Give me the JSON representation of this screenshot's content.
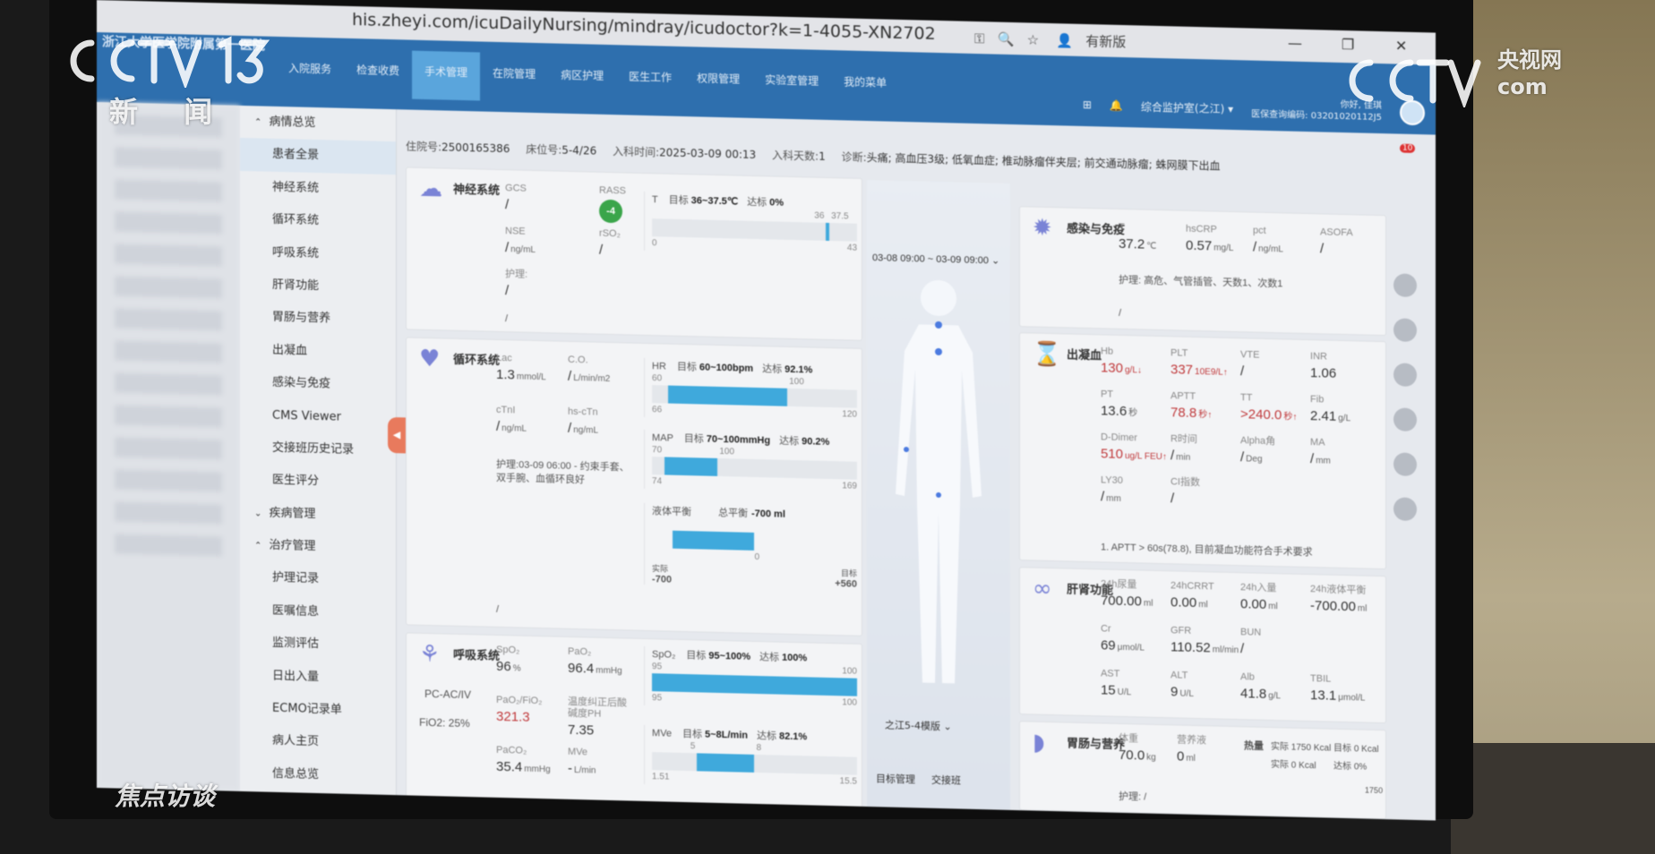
{
  "browser": {
    "url": "his.zheyi.com/icuDailyNursing/mindray/icudoctor?k=1-4055-XN2702",
    "profile_label": "有新版",
    "window_buttons": [
      "—",
      "❐",
      "✕"
    ]
  },
  "header": {
    "hospital": "浙江大学医学院附属第一医院",
    "nav": [
      "入院服务",
      "检查收费",
      "手术管理",
      "在院管理",
      "病区护理",
      "医生工作",
      "权限管理",
      "实验室管理",
      "我的菜单"
    ],
    "active_nav": 2,
    "ward": "综合监护室(之江)",
    "greeting": "你好, 佳琪",
    "staff_no": "医保查询编码: 03201020112J5",
    "notification_count": "10"
  },
  "sidebar": {
    "items": [
      {
        "label": "病情总览",
        "group": true,
        "expanded": true
      },
      {
        "label": "患者全景",
        "selected": true
      },
      {
        "label": "神经系统"
      },
      {
        "label": "循环系统"
      },
      {
        "label": "呼吸系统"
      },
      {
        "label": "肝肾功能"
      },
      {
        "label": "胃肠与营养"
      },
      {
        "label": "出凝血"
      },
      {
        "label": "感染与免疫"
      },
      {
        "label": "CMS Viewer"
      },
      {
        "label": "交接班历史记录"
      },
      {
        "label": "医生评分"
      },
      {
        "label": "疾病管理",
        "group": true
      },
      {
        "label": "治疗管理",
        "group": true,
        "expanded": true
      },
      {
        "label": "护理记录"
      },
      {
        "label": "医嘱信息"
      },
      {
        "label": "监测评估"
      },
      {
        "label": "日出入量"
      },
      {
        "label": "ECMO记录单"
      },
      {
        "label": "病人主页"
      },
      {
        "label": "信息总览"
      }
    ]
  },
  "patient": {
    "id_label": "住院号:",
    "id": "2500165386",
    "bed_label": "床位号:",
    "bed": "5-4/26",
    "admit_label": "入科时间:",
    "admit": "2025-03-09 00:13",
    "days_label": "入科天数:",
    "days": "1",
    "dx_label": "诊断:",
    "dx": "头痛; 高血压3级; 低氧血症; 椎动脉瘤伴夹层; 前交通动脉瘤; 蛛网膜下出血"
  },
  "neuro": {
    "title": "神经系统",
    "icon": "brain-icon",
    "metrics": [
      {
        "label": "GCS",
        "value": "/"
      },
      {
        "label": "RASS",
        "value": "-4",
        "badge": true
      },
      {
        "label": "NSE",
        "value": "/",
        "unit": "ng/mL"
      },
      {
        "label": "rSO₂",
        "value": "/"
      },
      {
        "label": "护理:",
        "value": "/"
      }
    ],
    "footer": "/",
    "chart": {
      "name": "T",
      "target_label": "目标",
      "target": "36~37.5℃",
      "rate_label": "达标",
      "rate": "0%",
      "ticks_top": [
        "36",
        "37.5"
      ],
      "min": "0",
      "max": "43",
      "value_range": [
        36.5,
        37.2
      ]
    }
  },
  "circ": {
    "title": "循环系统",
    "icon": "heart-lungs-icon",
    "metrics": [
      {
        "label": "Lac",
        "value": "1.3",
        "unit": "mmol/L"
      },
      {
        "label": "C.O.",
        "value": "/",
        "unit": "L/min/m2"
      },
      {
        "label": "cTnI",
        "value": "/",
        "unit": "ng/mL"
      },
      {
        "label": "hs-cTn",
        "value": "/",
        "unit": "ng/mL"
      }
    ],
    "nursing": "护理:03-09 06:00 - 约束手套、双手腕、血循环良好",
    "footer": "/",
    "hr": {
      "name": "HR",
      "target_label": "目标",
      "target": "60~100bpm",
      "rate_label": "达标",
      "rate": "92.1%",
      "ticks_top": [
        "60",
        "100"
      ],
      "min": "66",
      "max": "120"
    },
    "map": {
      "name": "MAP",
      "target_label": "目标",
      "target": "70~100mmHg",
      "rate_label": "达标",
      "rate": "90.2%",
      "ticks_top": [
        "70",
        "100"
      ],
      "min": "74",
      "max": "169"
    },
    "fluid": {
      "name": "液体平衡",
      "total_label": "总平衡",
      "total": "-700 ml",
      "zero": "0",
      "actual_label": "实际",
      "actual": "-700",
      "goal_label": "目标",
      "goal": "+560"
    }
  },
  "resp": {
    "title": "呼吸系统",
    "icon": "lungs-icon",
    "mode": "PC-AC/IV",
    "fio2": "FiO2: 25%",
    "metrics": [
      {
        "label": "SpO₂",
        "value": "96",
        "unit": "%"
      },
      {
        "label": "PaO₂",
        "value": "96.4",
        "unit": "mmHg"
      },
      {
        "label": "PaO₂/FiO₂",
        "value": "321.3",
        "red": true
      },
      {
        "label": "温度纠正后酸碱度PH",
        "value": "7.35"
      },
      {
        "label": "PaCO₂",
        "value": "35.4",
        "unit": "mmHg"
      },
      {
        "label": "MVe",
        "value": "-",
        "unit": "L/min"
      }
    ],
    "spo2": {
      "name": "SpO₂",
      "target_label": "目标",
      "target": "95~100%",
      "rate_label": "达标",
      "rate": "100%",
      "ticks_top": [
        "95",
        "100"
      ],
      "min": "95",
      "max": "100"
    },
    "mve": {
      "name": "MVe",
      "target_label": "目标",
      "target": "5~8L/min",
      "rate_label": "达标",
      "rate": "82.1%",
      "ticks_top": [
        "5",
        "8"
      ],
      "min": "1.51",
      "max": "15.5"
    }
  },
  "middle": {
    "time_range": "03-08 09:00 ~ 03-09 09:00",
    "template": "之江5-4模版",
    "buttons": [
      "目标管理",
      "交接班"
    ]
  },
  "infect": {
    "title": "感染与免疫",
    "icon": "virus-icon",
    "metrics": [
      {
        "label": "T",
        "value": "37.2",
        "unit": "℃"
      },
      {
        "label": "hsCRP",
        "value": "0.57",
        "unit": "mg/L"
      },
      {
        "label": "pct",
        "value": "/",
        "unit": "ng/mL"
      },
      {
        "label": "ASOFA",
        "value": "/"
      }
    ],
    "nursing": "护理: 高危、气管插管、天数1、次数1",
    "footer": "/"
  },
  "coag": {
    "title": "出凝血",
    "icon": "hourglass-icon",
    "metrics": [
      {
        "label": "Hb",
        "value": "130",
        "unit": "g/L↓",
        "red": true
      },
      {
        "label": "PLT",
        "value": "337",
        "unit": "10E9/L↑",
        "red": true
      },
      {
        "label": "VTE",
        "value": "/"
      },
      {
        "label": "INR",
        "value": "1.06"
      },
      {
        "label": "PT",
        "value": "13.6",
        "unit": "秒"
      },
      {
        "label": "APTT",
        "value": "78.8",
        "unit": "秒↑",
        "red": true
      },
      {
        "label": "TT",
        "value": ">240.0",
        "unit": "秒↑",
        "red": true
      },
      {
        "label": "Fib",
        "value": "2.41",
        "unit": "g/L"
      },
      {
        "label": "D-Dimer",
        "value": "510",
        "unit": "ug/L FEU↑",
        "red": true
      },
      {
        "label": "R时间",
        "value": "/",
        "unit": "min"
      },
      {
        "label": "Alpha角",
        "value": "/",
        "unit": "Deg"
      },
      {
        "label": "MA",
        "value": "/",
        "unit": "mm"
      },
      {
        "label": "LY30",
        "value": "/",
        "unit": "mm"
      },
      {
        "label": "CI指数",
        "value": "/"
      }
    ],
    "note": "1. APTT > 60s(78.8), 目前凝血功能符合手术要求"
  },
  "kidney": {
    "title": "肝肾功能",
    "icon": "kidney-liver-icon",
    "metrics": [
      {
        "label": "24h尿量",
        "value": "700.00",
        "unit": "ml"
      },
      {
        "label": "24hCRRT",
        "value": "0.00",
        "unit": "ml"
      },
      {
        "label": "24h入量",
        "value": "0.00",
        "unit": "ml"
      },
      {
        "label": "24h液体平衡",
        "value": "-700.00",
        "unit": "ml"
      },
      {
        "label": "Cr",
        "value": "69",
        "unit": "μmol/L"
      },
      {
        "label": "GFR",
        "value": "110.52",
        "unit": "ml/min"
      },
      {
        "label": "BUN",
        "value": "/"
      },
      {
        "label": "",
        "value": ""
      },
      {
        "label": "AST",
        "value": "15",
        "unit": "U/L"
      },
      {
        "label": "ALT",
        "value": "9",
        "unit": "U/L"
      },
      {
        "label": "Alb",
        "value": "41.8",
        "unit": "g/L"
      },
      {
        "label": "TBIL",
        "value": "13.1",
        "unit": "μmol/L"
      }
    ]
  },
  "gi": {
    "title": "胃肠与营养",
    "icon": "stomach-icon",
    "metrics": [
      {
        "label": "体重",
        "value": "70.0",
        "unit": "kg"
      },
      {
        "label": "营养液",
        "value": "0",
        "unit": "ml"
      }
    ],
    "heat_label": "热量",
    "target": "实际 1750 Kcal",
    "deficit": "目标 0 Kcal",
    "actual": "实际 0 Kcal",
    "rate": "达标 0%",
    "nursing": "护理: /",
    "side": "1750"
  },
  "overlays": {
    "channel": "CCTV 13",
    "channel_sub": "新 闻",
    "site": "CCTV 央视网 com",
    "program": "焦点访谈"
  }
}
